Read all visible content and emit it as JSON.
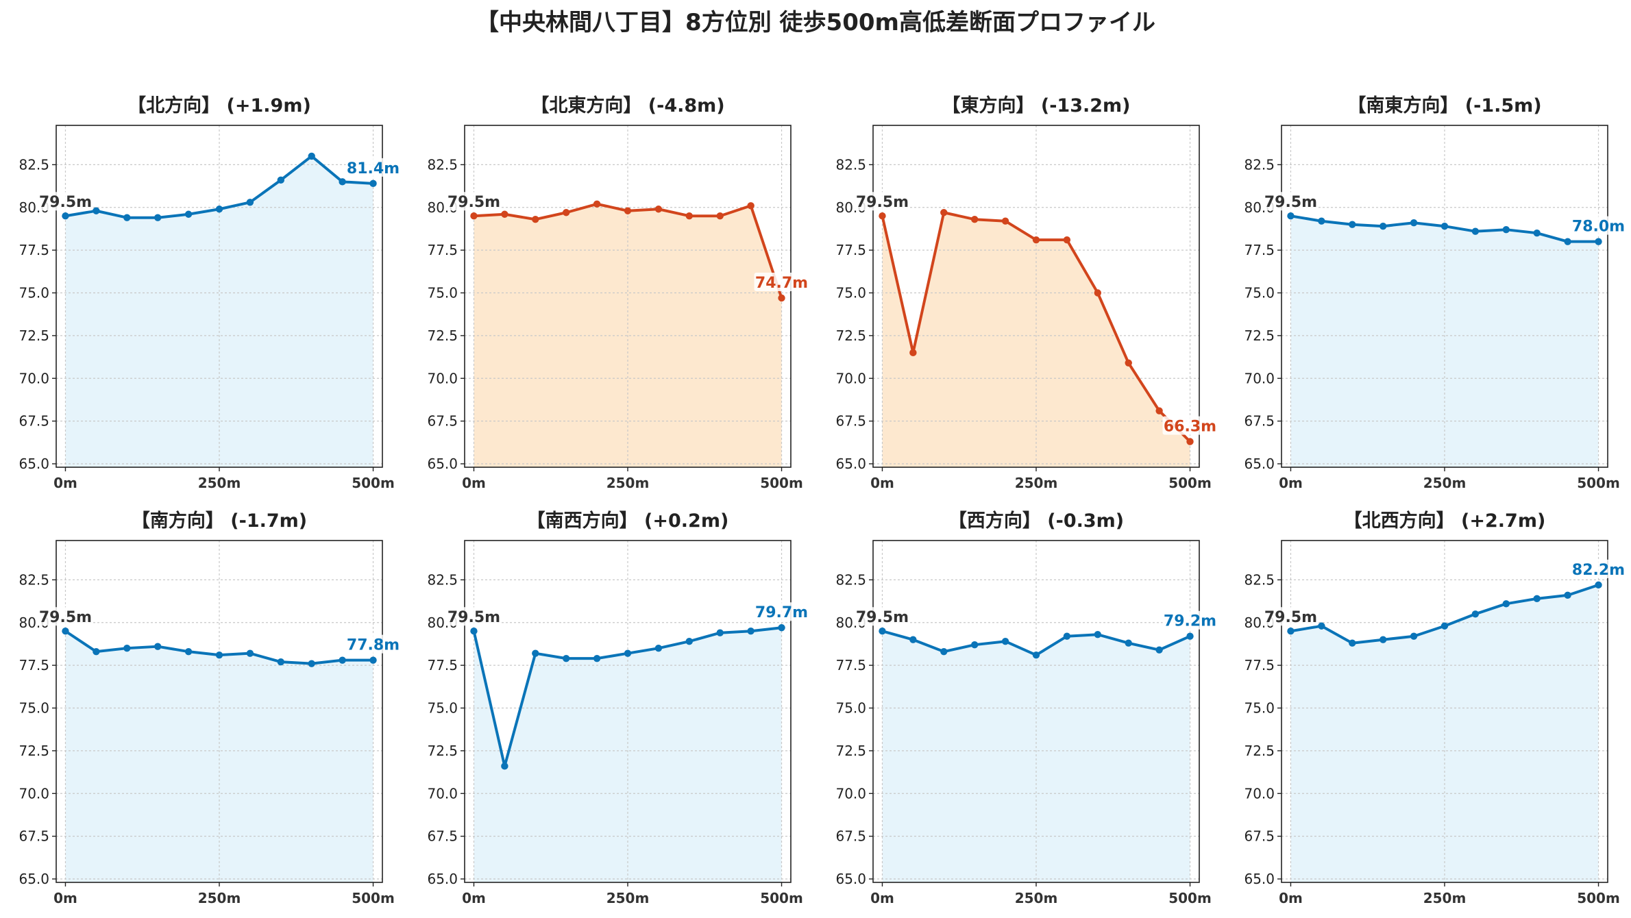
{
  "title": "【中央林間八丁目】8方位別 徒歩500m高低差断面プロファイル",
  "colors": {
    "up": "#0a74b8",
    "down": "#d2451c",
    "fill_up": "#e6f4fb",
    "fill_down": "#fde8cf"
  },
  "chart_data": [
    {
      "type": "area",
      "title": "【北方向】 (+1.9m)",
      "trend": "up",
      "x": [
        0,
        50,
        100,
        150,
        200,
        250,
        300,
        350,
        400,
        450,
        500
      ],
      "values": [
        79.5,
        79.8,
        79.4,
        79.4,
        79.6,
        79.9,
        80.3,
        81.6,
        83.0,
        81.5,
        81.4
      ],
      "start_label": "79.5m",
      "end_label": "81.4m",
      "xticks": [
        "0m",
        "250m",
        "500m"
      ],
      "yticks": [
        "65.0",
        "67.5",
        "70.0",
        "72.5",
        "75.0",
        "77.5",
        "80.0",
        "82.5"
      ],
      "xlim": [
        -15,
        515
      ],
      "ylim": [
        64.8,
        84.8
      ],
      "grid": true
    },
    {
      "type": "area",
      "title": "【北東方向】 (-4.8m)",
      "trend": "down",
      "x": [
        0,
        50,
        100,
        150,
        200,
        250,
        300,
        350,
        400,
        450,
        500
      ],
      "values": [
        79.5,
        79.6,
        79.3,
        79.7,
        80.2,
        79.8,
        79.9,
        79.5,
        79.5,
        80.1,
        74.7
      ],
      "start_label": "79.5m",
      "end_label": "74.7m",
      "xticks": [
        "0m",
        "250m",
        "500m"
      ],
      "yticks": [
        "65.0",
        "67.5",
        "70.0",
        "72.5",
        "75.0",
        "77.5",
        "80.0",
        "82.5"
      ],
      "xlim": [
        -15,
        515
      ],
      "ylim": [
        64.8,
        84.8
      ],
      "grid": true
    },
    {
      "type": "area",
      "title": "【東方向】 (-13.2m)",
      "trend": "down",
      "x": [
        0,
        50,
        100,
        150,
        200,
        250,
        300,
        350,
        400,
        450,
        500
      ],
      "values": [
        79.5,
        71.5,
        79.7,
        79.3,
        79.2,
        78.1,
        78.1,
        75.0,
        70.9,
        68.1,
        66.3
      ],
      "start_label": "79.5m",
      "end_label": "66.3m",
      "xticks": [
        "0m",
        "250m",
        "500m"
      ],
      "yticks": [
        "65.0",
        "67.5",
        "70.0",
        "72.5",
        "75.0",
        "77.5",
        "80.0",
        "82.5"
      ],
      "xlim": [
        -15,
        515
      ],
      "ylim": [
        64.8,
        84.8
      ],
      "grid": true
    },
    {
      "type": "area",
      "title": "【南東方向】 (-1.5m)",
      "trend": "up",
      "x": [
        0,
        50,
        100,
        150,
        200,
        250,
        300,
        350,
        400,
        450,
        500
      ],
      "values": [
        79.5,
        79.2,
        79.0,
        78.9,
        79.1,
        78.9,
        78.6,
        78.7,
        78.5,
        78.0,
        78.0
      ],
      "start_label": "79.5m",
      "end_label": "78.0m",
      "xticks": [
        "0m",
        "250m",
        "500m"
      ],
      "yticks": [
        "65.0",
        "67.5",
        "70.0",
        "72.5",
        "75.0",
        "77.5",
        "80.0",
        "82.5"
      ],
      "xlim": [
        -15,
        515
      ],
      "ylim": [
        64.8,
        84.8
      ],
      "grid": true
    },
    {
      "type": "area",
      "title": "【南方向】 (-1.7m)",
      "trend": "up",
      "x": [
        0,
        50,
        100,
        150,
        200,
        250,
        300,
        350,
        400,
        450,
        500
      ],
      "values": [
        79.5,
        78.3,
        78.5,
        78.6,
        78.3,
        78.1,
        78.2,
        77.7,
        77.6,
        77.8,
        77.8
      ],
      "start_label": "79.5m",
      "end_label": "77.8m",
      "xticks": [
        "0m",
        "250m",
        "500m"
      ],
      "yticks": [
        "65.0",
        "67.5",
        "70.0",
        "72.5",
        "75.0",
        "77.5",
        "80.0",
        "82.5"
      ],
      "xlim": [
        -15,
        515
      ],
      "ylim": [
        64.8,
        84.8
      ],
      "grid": true
    },
    {
      "type": "area",
      "title": "【南西方向】 (+0.2m)",
      "trend": "up",
      "x": [
        0,
        50,
        100,
        150,
        200,
        250,
        300,
        350,
        400,
        450,
        500
      ],
      "values": [
        79.5,
        71.6,
        78.2,
        77.9,
        77.9,
        78.2,
        78.5,
        78.9,
        79.4,
        79.5,
        79.7
      ],
      "start_label": "79.5m",
      "end_label": "79.7m",
      "xticks": [
        "0m",
        "250m",
        "500m"
      ],
      "yticks": [
        "65.0",
        "67.5",
        "70.0",
        "72.5",
        "75.0",
        "77.5",
        "80.0",
        "82.5"
      ],
      "xlim": [
        -15,
        515
      ],
      "ylim": [
        64.8,
        84.8
      ],
      "grid": true
    },
    {
      "type": "area",
      "title": "【西方向】 (-0.3m)",
      "trend": "up",
      "x": [
        0,
        50,
        100,
        150,
        200,
        250,
        300,
        350,
        400,
        450,
        500
      ],
      "values": [
        79.5,
        79.0,
        78.3,
        78.7,
        78.9,
        78.1,
        79.2,
        79.3,
        78.8,
        78.4,
        79.2
      ],
      "start_label": "79.5m",
      "end_label": "79.2m",
      "xticks": [
        "0m",
        "250m",
        "500m"
      ],
      "yticks": [
        "65.0",
        "67.5",
        "70.0",
        "72.5",
        "75.0",
        "77.5",
        "80.0",
        "82.5"
      ],
      "xlim": [
        -15,
        515
      ],
      "ylim": [
        64.8,
        84.8
      ],
      "grid": true
    },
    {
      "type": "area",
      "title": "【北西方向】 (+2.7m)",
      "trend": "up",
      "x": [
        0,
        50,
        100,
        150,
        200,
        250,
        300,
        350,
        400,
        450,
        500
      ],
      "values": [
        79.5,
        79.8,
        78.8,
        79.0,
        79.2,
        79.8,
        80.5,
        81.1,
        81.4,
        81.6,
        82.2
      ],
      "start_label": "79.5m",
      "end_label": "82.2m",
      "xticks": [
        "0m",
        "250m",
        "500m"
      ],
      "yticks": [
        "65.0",
        "67.5",
        "70.0",
        "72.5",
        "75.0",
        "77.5",
        "80.0",
        "82.5"
      ],
      "xlim": [
        -15,
        515
      ],
      "ylim": [
        64.8,
        84.8
      ],
      "grid": true
    }
  ]
}
